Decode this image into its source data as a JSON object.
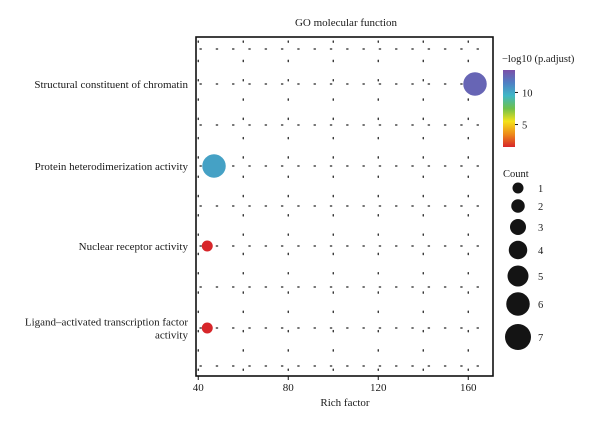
{
  "chart_data": {
    "type": "scatter",
    "title": "GO molecular function",
    "xlabel": "Rich factor",
    "ylabel": "",
    "xlim": [
      39,
      171
    ],
    "xticks": [
      40,
      80,
      120,
      160
    ],
    "grid": true,
    "points": [
      {
        "term": "Structural constituent of chromatin",
        "term_lines": [
          "Structural constituent of chromatin"
        ],
        "rich_factor": 163,
        "count": 6,
        "neg_log10_padj": 12.6
      },
      {
        "term": "Protein heterodimerization activity",
        "term_lines": [
          "Protein heterodimerization activity"
        ],
        "rich_factor": 47,
        "count": 6,
        "neg_log10_padj": 10.3
      },
      {
        "term": "Nuclear receptor activity",
        "term_lines": [
          "Nuclear receptor activity"
        ],
        "rich_factor": 44,
        "count": 1,
        "neg_log10_padj": 1.5
      },
      {
        "term": "Ligand-activated transcription factor activity",
        "term_lines": [
          "Ligand–activated transcription factor",
          "activity"
        ],
        "rich_factor": 44,
        "count": 1,
        "neg_log10_padj": 1.5
      }
    ],
    "color_legend": {
      "title": "−log10 (p.adjust)",
      "ticks": [
        5,
        10
      ],
      "range": [
        1.5,
        13.5
      ],
      "colors": [
        "#d7262a",
        "#ee8a1a",
        "#f4e21a",
        "#6fc04b",
        "#3fb7c6",
        "#4f7fc4",
        "#7a4fa8"
      ]
    },
    "size_legend": {
      "title": "Count",
      "values": [
        1,
        2,
        3,
        4,
        5,
        6,
        7
      ]
    },
    "legend_placement": "right"
  }
}
